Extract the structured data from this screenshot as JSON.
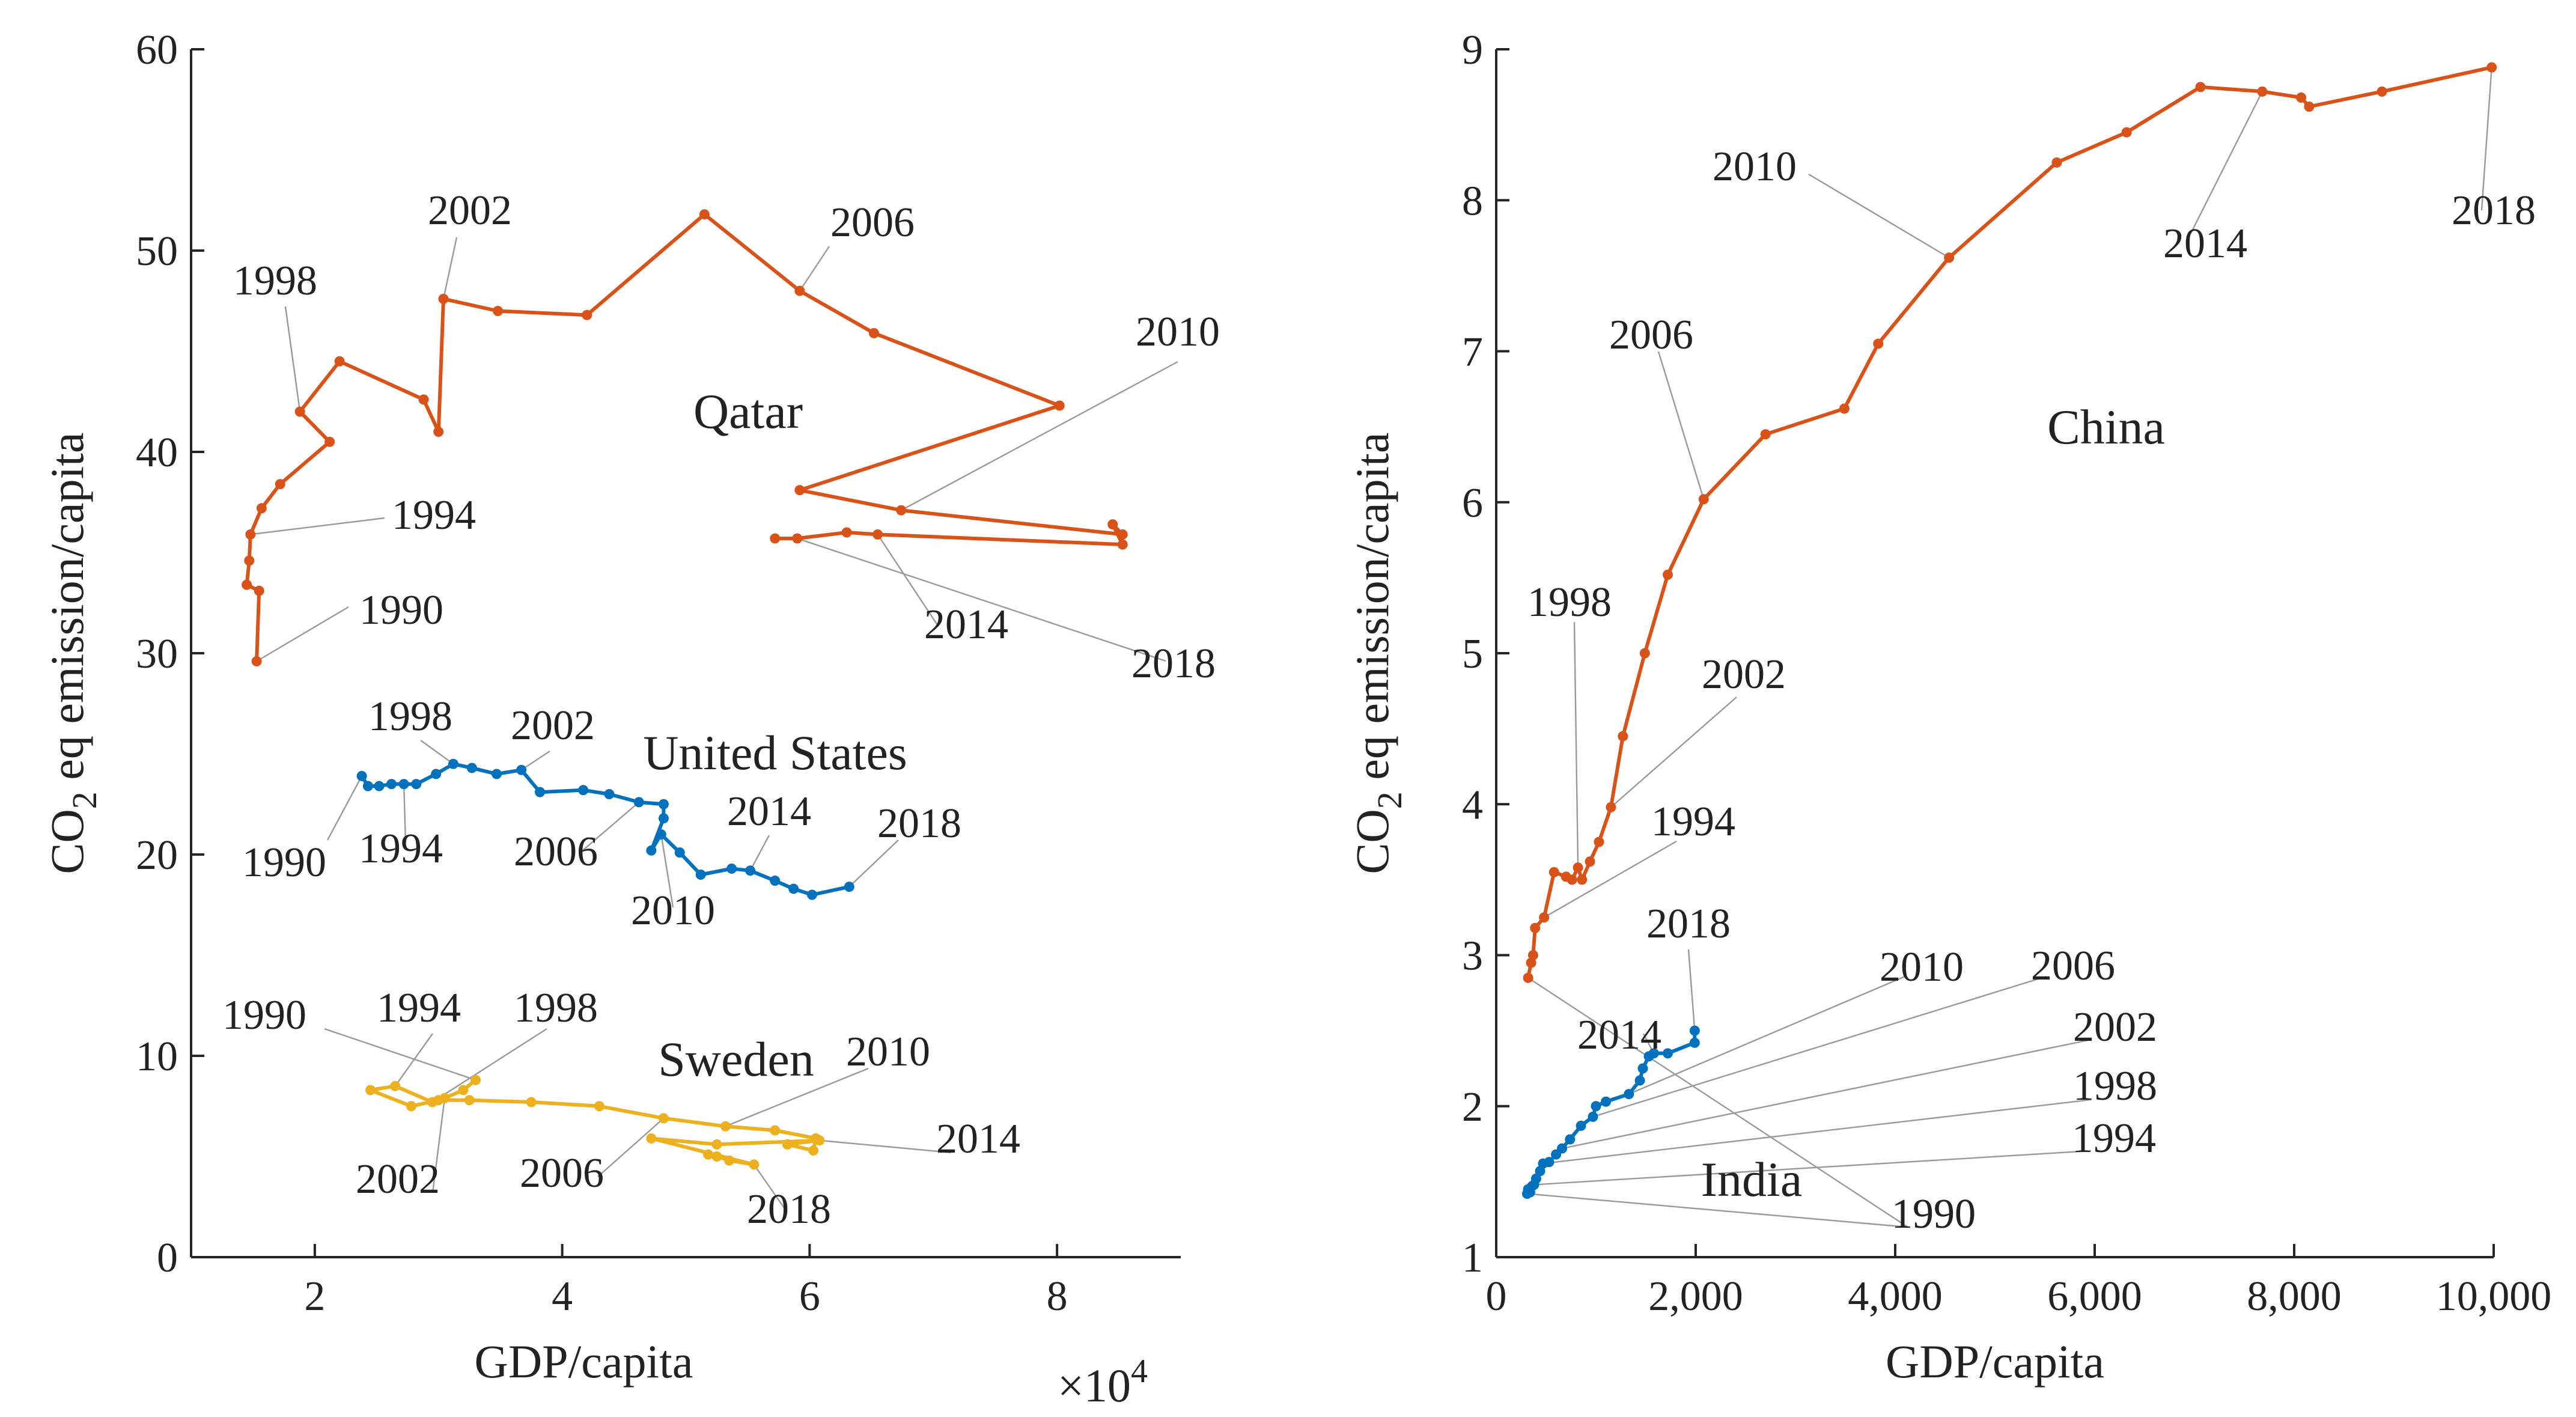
{
  "chart_data": [
    {
      "type": "line",
      "xlabel": "GDP/capita",
      "x_multiplier_label": "×10",
      "x_multiplier_exponent": "4",
      "ylabel_prefix": "CO",
      "ylabel_subscript": "2",
      "ylabel_suffix": " eq emission/capita",
      "xlim": [
        1,
        9
      ],
      "ylim": [
        0,
        60
      ],
      "xticks": [
        2,
        4,
        6,
        8
      ],
      "xtick_labels": [
        "2",
        "4",
        "6",
        "8"
      ],
      "yticks": [
        0,
        10,
        20,
        30,
        40,
        50,
        60
      ],
      "ytick_labels": [
        "0",
        "10",
        "20",
        "30",
        "40",
        "50",
        "60"
      ],
      "series": [
        {
          "name": "Qatar",
          "color": "#D95319",
          "x": [
            1.53,
            1.55,
            1.45,
            1.47,
            1.48,
            1.57,
            1.72,
            2.12,
            1.88,
            2.2,
            2.88,
            3.0,
            3.04,
            3.48,
            4.2,
            5.15,
            5.92,
            6.52,
            8.02,
            5.92,
            6.74,
            8.53,
            8.45,
            8.53,
            6.55,
            6.3,
            5.9,
            5.72
          ],
          "y": [
            29.6,
            33.1,
            33.4,
            34.6,
            35.9,
            37.2,
            38.4,
            40.5,
            42.0,
            44.5,
            42.6,
            41.0,
            47.6,
            47.0,
            46.8,
            51.8,
            48.0,
            45.9,
            42.3,
            38.1,
            37.1,
            35.9,
            36.4,
            35.4,
            35.9,
            36.0,
            35.7,
            35.7
          ],
          "label": "Qatar",
          "annotations": [
            {
              "year": "1990",
              "point_index": 0
            },
            {
              "year": "1994",
              "point_index": 4
            },
            {
              "year": "1998",
              "point_index": 8
            },
            {
              "year": "2002",
              "point_index": 12
            },
            {
              "year": "2006",
              "point_index": 16
            },
            {
              "year": "2010",
              "point_index": 20
            },
            {
              "year": "2014",
              "point_index": 24
            },
            {
              "year": "2018",
              "point_index": 26
            }
          ]
        },
        {
          "name": "United States",
          "color": "#0072BD",
          "x": [
            2.38,
            2.43,
            2.52,
            2.62,
            2.72,
            2.82,
            2.98,
            3.12,
            3.27,
            3.47,
            3.67,
            3.82,
            4.17,
            4.38,
            4.62,
            4.82,
            4.82,
            4.72,
            4.8,
            4.95,
            5.12,
            5.37,
            5.52,
            5.72,
            5.87,
            6.02,
            6.32
          ],
          "y": [
            23.9,
            23.4,
            23.4,
            23.5,
            23.5,
            23.5,
            24.0,
            24.5,
            24.3,
            24.0,
            24.2,
            23.1,
            23.2,
            23.0,
            22.6,
            22.5,
            21.8,
            20.2,
            21.0,
            20.1,
            19.0,
            19.3,
            19.2,
            18.7,
            18.3,
            18.0,
            18.4
          ],
          "label": "United States",
          "annotations": [
            {
              "year": "1990",
              "point_index": 0
            },
            {
              "year": "1994",
              "point_index": 4
            },
            {
              "year": "1998",
              "point_index": 7
            },
            {
              "year": "2002",
              "point_index": 10
            },
            {
              "year": "2006",
              "point_index": 14
            },
            {
              "year": "2010",
              "point_index": 18
            },
            {
              "year": "2014",
              "point_index": 22
            },
            {
              "year": "2018",
              "point_index": 26
            }
          ]
        },
        {
          "name": "Sweden",
          "color": "#EDB120",
          "x": [
            3.3,
            3.2,
            3.05,
            2.95,
            2.65,
            2.45,
            2.78,
            3.0,
            3.25,
            3.75,
            4.3,
            4.82,
            5.32,
            5.72,
            6.05,
            6.03,
            5.82,
            6.08,
            5.25,
            4.72,
            5.55,
            5.35,
            5.25,
            5.18
          ],
          "y": [
            8.8,
            8.3,
            7.9,
            7.7,
            8.5,
            8.3,
            7.5,
            7.8,
            7.8,
            7.7,
            7.5,
            6.9,
            6.5,
            6.3,
            5.9,
            5.3,
            5.6,
            5.8,
            5.6,
            5.9,
            4.6,
            4.8,
            5.0,
            5.1
          ],
          "label": "Sweden",
          "annotations": [
            {
              "year": "1990",
              "point_index": 0
            },
            {
              "year": "1994",
              "point_index": 4
            },
            {
              "year": "1998",
              "point_index": 3
            },
            {
              "year": "2002",
              "point_index": 2
            },
            {
              "year": "2006",
              "point_index": 11
            },
            {
              "year": "2010",
              "point_index": 12
            },
            {
              "year": "2014",
              "point_index": 17
            },
            {
              "year": "2018",
              "point_index": 20
            }
          ]
        }
      ]
    },
    {
      "type": "line",
      "xlabel": "GDP/capita",
      "ylabel_prefix": "CO",
      "ylabel_subscript": "2",
      "ylabel_suffix": " eq emission/capita",
      "xlim": [
        0,
        10000
      ],
      "ylim": [
        1,
        9
      ],
      "xticks": [
        0,
        2000,
        4000,
        6000,
        8000,
        10000
      ],
      "xtick_labels": [
        "0",
        "2,000",
        "4,000",
        "6,000",
        "8,000",
        "10,000"
      ],
      "yticks": [
        1,
        2,
        3,
        4,
        5,
        6,
        7,
        8,
        9
      ],
      "ytick_labels": [
        "1",
        "2",
        "3",
        "4",
        "5",
        "6",
        "7",
        "8",
        "9"
      ],
      "series": [
        {
          "name": "China",
          "color": "#D95319",
          "x": [
            320,
            350,
            370,
            390,
            480,
            580,
            700,
            760,
            820,
            860,
            940,
            1030,
            1150,
            1270,
            1490,
            1720,
            2080,
            2700,
            3490,
            3830,
            4540,
            5620,
            6320,
            7060,
            7680,
            8070,
            8150,
            8880,
            9980
          ],
          "y": [
            2.85,
            2.95,
            3.0,
            3.18,
            3.25,
            3.55,
            3.52,
            3.5,
            3.58,
            3.5,
            3.62,
            3.75,
            3.98,
            4.45,
            5.0,
            5.52,
            6.02,
            6.45,
            6.62,
            7.05,
            7.62,
            8.25,
            8.45,
            8.75,
            8.72,
            8.68,
            8.62,
            8.72,
            8.88
          ],
          "label": "China",
          "annotations": [
            {
              "year": "1990",
              "point_index": 0
            },
            {
              "year": "1994",
              "point_index": 4
            },
            {
              "year": "1998",
              "point_index": 8
            },
            {
              "year": "2002",
              "point_index": 12
            },
            {
              "year": "2006",
              "point_index": 16
            },
            {
              "year": "2010",
              "point_index": 20
            },
            {
              "year": "2014",
              "point_index": 24
            },
            {
              "year": "2018",
              "point_index": 28
            }
          ]
        },
        {
          "name": "India",
          "color": "#0072BD",
          "x": [
            310,
            320,
            340,
            360,
            380,
            400,
            440,
            470,
            530,
            600,
            660,
            740,
            850,
            970,
            1000,
            1100,
            1330,
            1440,
            1470,
            1530,
            1580,
            1720,
            1990,
            1990
          ],
          "y": [
            1.42,
            1.45,
            1.43,
            1.47,
            1.48,
            1.52,
            1.57,
            1.62,
            1.63,
            1.68,
            1.72,
            1.78,
            1.87,
            1.93,
            2.0,
            2.03,
            2.08,
            2.17,
            2.25,
            2.33,
            2.35,
            2.35,
            2.42,
            2.5
          ],
          "label": "India",
          "annotations": [
            {
              "year": "1990",
              "point_index": 0
            },
            {
              "year": "1994",
              "point_index": 4
            },
            {
              "year": "1998",
              "point_index": 7
            },
            {
              "year": "2002",
              "point_index": 10
            },
            {
              "year": "2006",
              "point_index": 13
            },
            {
              "year": "2010",
              "point_index": 16
            },
            {
              "year": "2014",
              "point_index": 20
            },
            {
              "year": "2018",
              "point_index": 23
            }
          ]
        }
      ]
    }
  ]
}
